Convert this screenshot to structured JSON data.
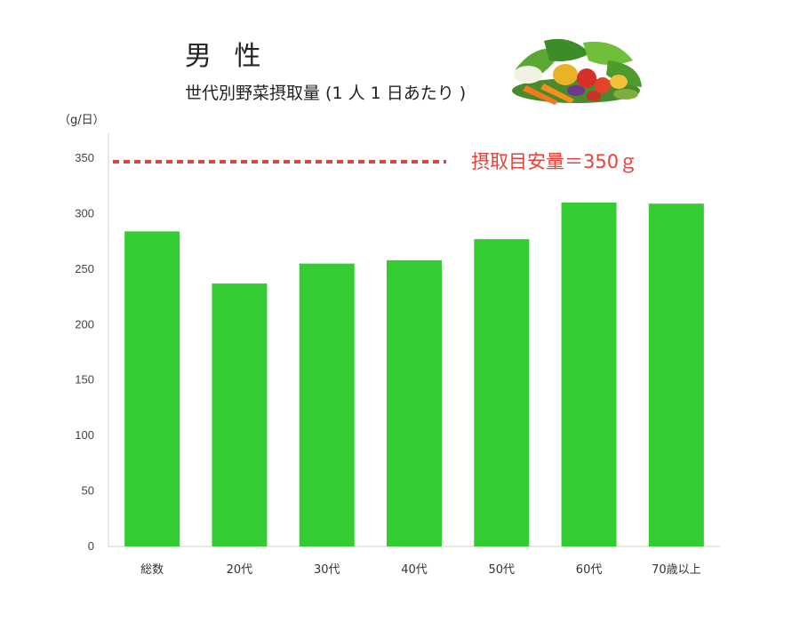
{
  "header": {
    "title": "男 性",
    "subtitle": "世代別野菜摂取量 (1 人 1 日あたり )",
    "unit": "（g/日）"
  },
  "chart_data": {
    "type": "bar",
    "categories": [
      "総数",
      "20代",
      "30代",
      "40代",
      "50代",
      "60代",
      "70歳以上"
    ],
    "values": [
      284,
      237,
      255,
      258,
      277,
      310,
      309
    ],
    "ylim": [
      0,
      350
    ],
    "yticks": [
      0,
      50,
      100,
      150,
      200,
      250,
      300,
      350
    ],
    "ylabel": "（g/日）",
    "bar_color": "#33cc33",
    "reference_line": {
      "value": 350,
      "label": "摂取目安量＝350ｇ",
      "color": "#e8413a",
      "style": "dotted"
    },
    "grid": false
  },
  "decoration": {
    "image": "vegetables-illustration"
  }
}
